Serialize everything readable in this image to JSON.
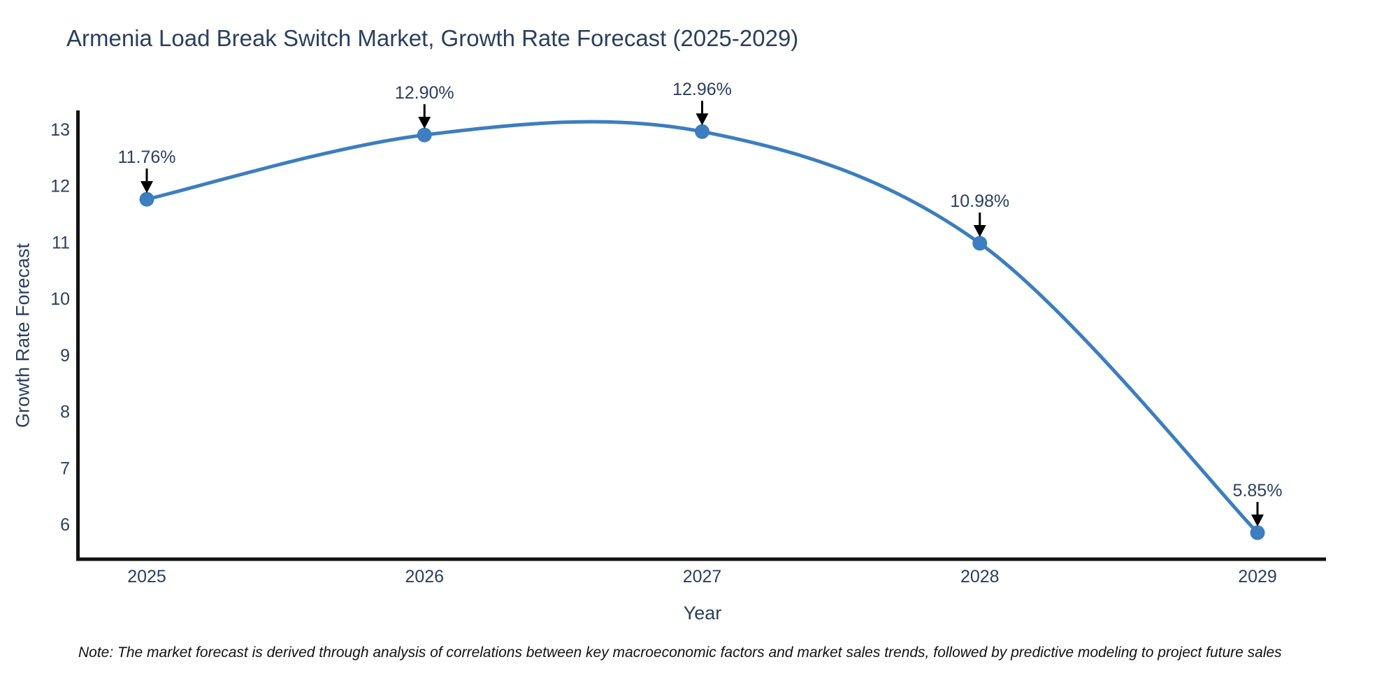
{
  "title": "Armenia Load Break Switch Market, Growth Rate Forecast (2025-2029)",
  "note": "Note: The market forecast is derived through analysis of correlations between key macroeconomic factors and market sales trends, followed by predictive modeling to project future sales",
  "chart_data": {
    "type": "line",
    "line_shape": "spline",
    "x": [
      "2025",
      "2026",
      "2027",
      "2028",
      "2029"
    ],
    "values": [
      11.76,
      12.9,
      12.96,
      10.98,
      5.85
    ],
    "point_labels": [
      "11.76%",
      "12.90%",
      "12.96%",
      "10.98%",
      "5.85%"
    ],
    "title": "Armenia Load Break Switch Market, Growth Rate Forecast (2025-2029)",
    "xlabel": "Year",
    "ylabel": "Growth Rate Forecast",
    "yticks": [
      6,
      7,
      8,
      9,
      10,
      11,
      12,
      13
    ],
    "ylim": [
      5.38,
      13.31
    ],
    "grid": false,
    "legend": false,
    "annotations_have_arrows": true,
    "colors": {
      "line": "#3c7ebf",
      "marker": "#3c7ebf",
      "text": "#2a3f5f",
      "axis": "#111111",
      "arrow": "#000000",
      "note_text": "#111111",
      "background": "#ffffff"
    }
  }
}
